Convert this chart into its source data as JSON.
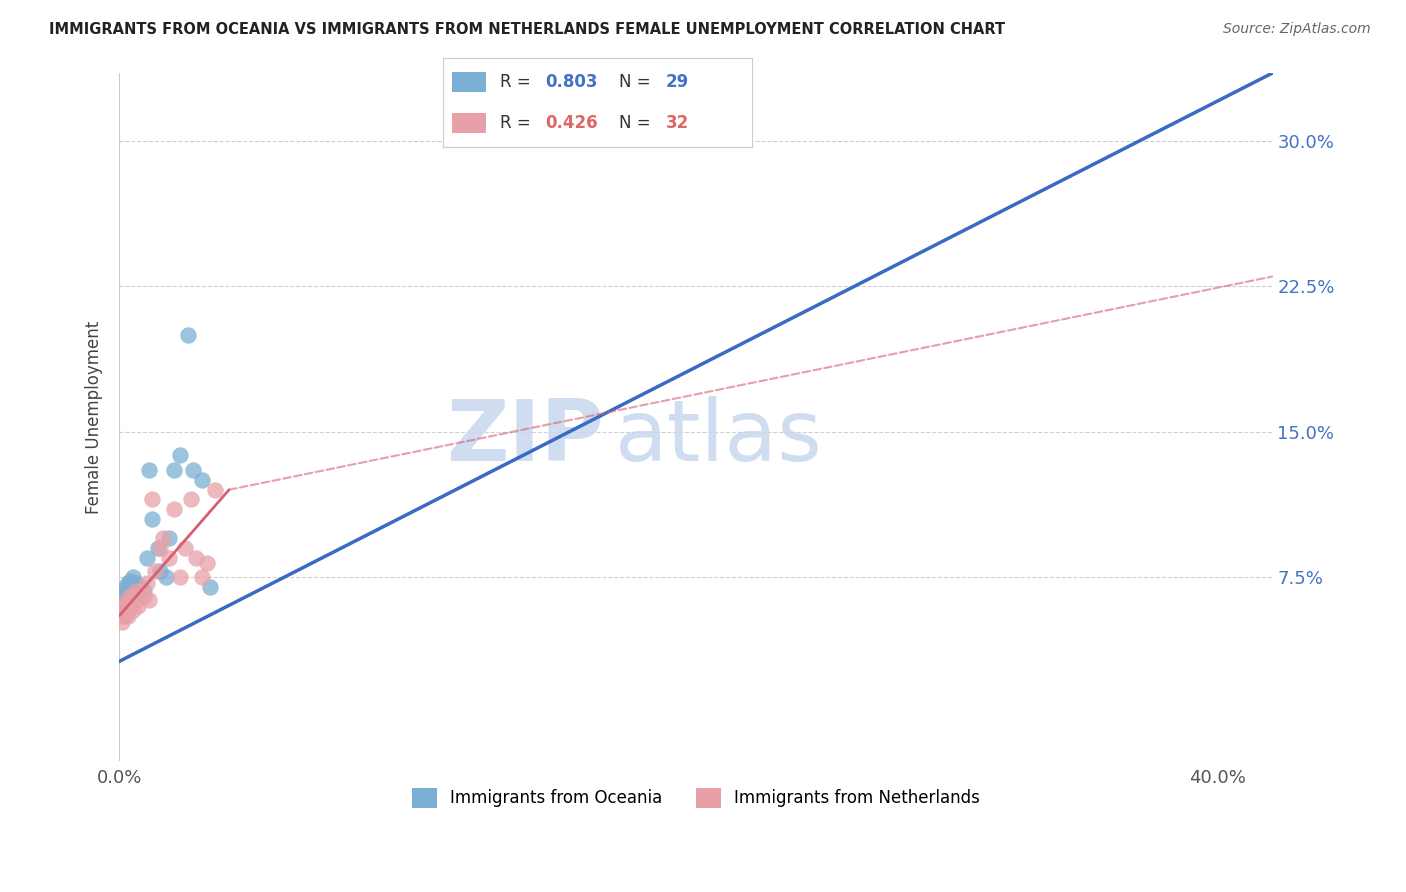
{
  "title": "IMMIGRANTS FROM OCEANIA VS IMMIGRANTS FROM NETHERLANDS FEMALE UNEMPLOYMENT CORRELATION CHART",
  "source": "Source: ZipAtlas.com",
  "ylabel": "Female Unemployment",
  "y_tick_labels": [
    "7.5%",
    "15.0%",
    "22.5%",
    "30.0%"
  ],
  "y_tick_values": [
    0.075,
    0.15,
    0.225,
    0.3
  ],
  "x_ticks": [
    0.0,
    0.05,
    0.1,
    0.15,
    0.2,
    0.25,
    0.3,
    0.35,
    0.4
  ],
  "xlim": [
    0.0,
    0.42
  ],
  "ylim": [
    -0.02,
    0.335
  ],
  "series1_label": "Immigrants from Oceania",
  "series1_color": "#7bafd4",
  "series1_R": "0.803",
  "series1_N": "29",
  "series2_label": "Immigrants from Netherlands",
  "series2_color": "#e8a0a8",
  "series2_R": "0.426",
  "series2_N": "32",
  "legend_R1_color": "#4472c4",
  "legend_R2_color": "#e06666",
  "line1_color": "#3a6bc4",
  "line2_color": "#d46070",
  "watermark_zip": "ZIP",
  "watermark_atlas": "atlas",
  "background_color": "#ffffff",
  "series1_x": [
    0.001,
    0.001,
    0.002,
    0.002,
    0.003,
    0.003,
    0.003,
    0.004,
    0.004,
    0.005,
    0.005,
    0.006,
    0.006,
    0.007,
    0.008,
    0.009,
    0.01,
    0.011,
    0.012,
    0.014,
    0.015,
    0.017,
    0.018,
    0.02,
    0.022,
    0.025,
    0.027,
    0.03,
    0.033
  ],
  "series1_y": [
    0.062,
    0.065,
    0.068,
    0.07,
    0.065,
    0.068,
    0.072,
    0.068,
    0.073,
    0.068,
    0.075,
    0.068,
    0.072,
    0.068,
    0.07,
    0.068,
    0.085,
    0.13,
    0.105,
    0.09,
    0.078,
    0.075,
    0.095,
    0.13,
    0.138,
    0.2,
    0.13,
    0.125,
    0.07
  ],
  "series2_x": [
    0.001,
    0.001,
    0.001,
    0.002,
    0.002,
    0.002,
    0.003,
    0.003,
    0.004,
    0.004,
    0.005,
    0.005,
    0.006,
    0.006,
    0.007,
    0.008,
    0.009,
    0.01,
    0.011,
    0.012,
    0.013,
    0.015,
    0.016,
    0.018,
    0.02,
    0.022,
    0.024,
    0.026,
    0.028,
    0.03,
    0.032,
    0.035
  ],
  "series2_y": [
    0.052,
    0.055,
    0.058,
    0.055,
    0.06,
    0.062,
    0.055,
    0.06,
    0.06,
    0.065,
    0.058,
    0.065,
    0.063,
    0.068,
    0.06,
    0.068,
    0.065,
    0.072,
    0.063,
    0.115,
    0.078,
    0.09,
    0.095,
    0.085,
    0.11,
    0.075,
    0.09,
    0.115,
    0.085,
    0.075,
    0.082,
    0.12
  ],
  "line1_x0": -0.002,
  "line1_y0": 0.03,
  "line1_x1": 0.42,
  "line1_y1": 0.335,
  "line2_solid_x0": 0.0,
  "line2_solid_y0": 0.055,
  "line2_solid_x1": 0.04,
  "line2_solid_y1": 0.12,
  "line2_dash_x0": 0.04,
  "line2_dash_y0": 0.12,
  "line2_dash_x1": 0.42,
  "line2_dash_y1": 0.23
}
